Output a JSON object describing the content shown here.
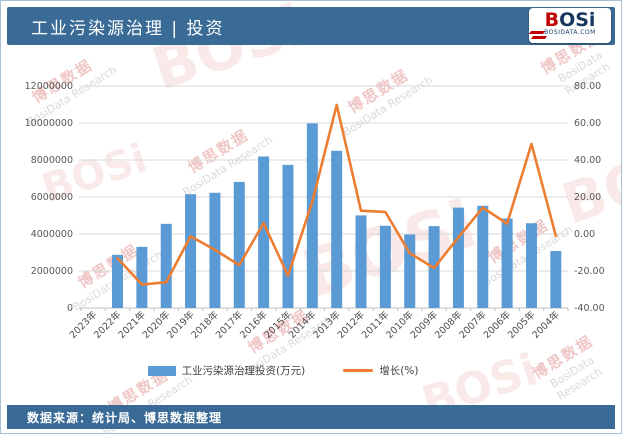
{
  "header": {
    "title": "工业污染源治理 | 投资",
    "logo": {
      "b": "B",
      "osi": "OSi",
      "subtext": "BOSIDATA.COM"
    }
  },
  "footer": {
    "source": "数据来源：统计局、博思数据整理"
  },
  "watermark": {
    "cn": "博思数据",
    "en": "BosiData Research",
    "logo": "BOSi"
  },
  "legend": [
    {
      "label": "工业污染源治理投资(万元)",
      "marker": "bar-swatch",
      "color": "#5b9bd5"
    },
    {
      "label": "增长(%)",
      "marker": "line-swatch",
      "color": "#ed7d31"
    }
  ],
  "chart_data": {
    "type": "bar",
    "subtype": "bar+line combo, dual axis",
    "title": "工业污染源治理 | 投资",
    "categories": [
      "2023年",
      "2022年",
      "2021年",
      "2020年",
      "2019年",
      "2018年",
      "2017年",
      "2016年",
      "2015年",
      "2014年",
      "2013年",
      "2012年",
      "2011年",
      "2010年",
      "2009年",
      "2008年",
      "2007年",
      "2006年",
      "2005年",
      "2004年"
    ],
    "series": [
      {
        "name": "工业污染源治理投资(万元)",
        "type": "bar",
        "axis": "left",
        "color": "#5b9bd5",
        "values": [
          null,
          2873000,
          3307000,
          4549000,
          6152000,
          6228000,
          6815000,
          8190000,
          7737000,
          9977000,
          8497000,
          5005000,
          4444000,
          3970000,
          4426000,
          5426000,
          5524000,
          4839000,
          4582000,
          3081000
        ]
      },
      {
        "name": "增长(%)",
        "type": "line",
        "axis": "right",
        "color": "#ed7d31",
        "values": [
          null,
          -13.1,
          -27.3,
          -26.1,
          -1.2,
          -8.6,
          -16.8,
          5.9,
          -22.5,
          17.4,
          69.8,
          12.6,
          11.9,
          -10.3,
          -18.4,
          -1.8,
          14.2,
          5.6,
          48.7,
          -1.0
        ]
      }
    ],
    "left_axis": {
      "min": 0,
      "max": 12000000,
      "tick_labels_top_to_bottom": [
        "12000000",
        "10000000",
        "8000000",
        "6000000",
        "4000000",
        "2000000",
        "0"
      ]
    },
    "right_axis": {
      "min": -40,
      "max": 80,
      "tick_labels_top_to_bottom": [
        "80.00",
        "60.00",
        "40.00",
        "20.00",
        "0.00",
        "-20.00",
        "-40.00"
      ]
    },
    "grid": true,
    "legend_position": "bottom",
    "x_label_rotation": 45
  }
}
